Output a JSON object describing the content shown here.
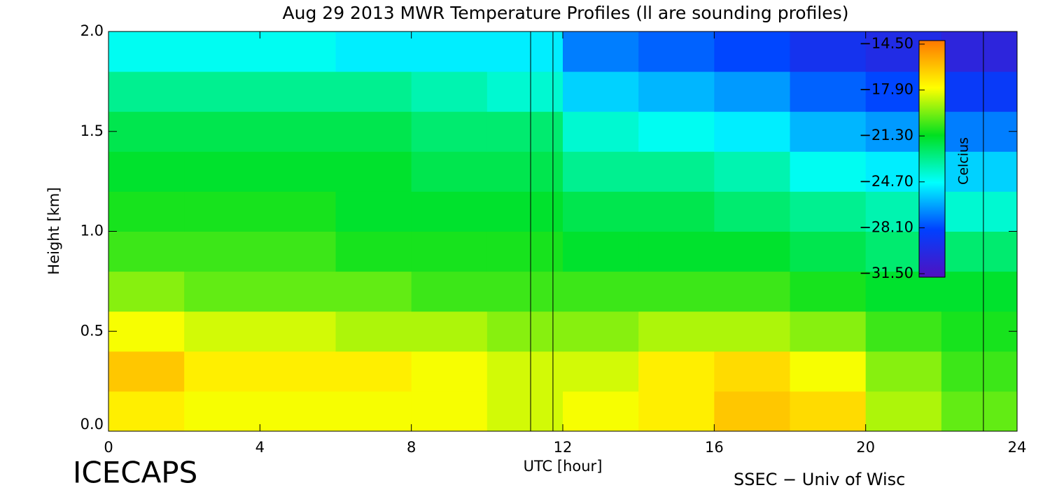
{
  "chart_data": {
    "type": "heatmap",
    "title": "Aug 29 2013 MWR Temperature Profiles (ll are sounding profiles)",
    "xlabel": "UTC [hour]",
    "ylabel": "Height [km]",
    "colorbar_label": "Celcius",
    "footer_left": "ICECAPS",
    "footer_right": "SSEC − Univ of Wisc",
    "xlim": [
      0,
      24
    ],
    "ylim": [
      0,
      2
    ],
    "xticks": [
      0,
      4,
      8,
      12,
      16,
      20,
      24
    ],
    "yticks": [
      {
        "value": 0,
        "label": "0.0"
      },
      {
        "value": 0.5,
        "label": "0.5"
      },
      {
        "value": 1,
        "label": "1.0"
      },
      {
        "value": 1.5,
        "label": "1.5"
      },
      {
        "value": 2,
        "label": "2.0"
      }
    ],
    "x_edges": [
      0,
      2,
      4,
      6,
      8,
      10,
      12,
      14,
      16,
      18,
      20,
      22,
      24
    ],
    "y_edges": [
      0,
      0.2,
      0.4,
      0.6,
      0.8,
      1,
      1.2,
      1.4,
      1.6,
      1.8,
      2
    ],
    "z": [
      [
        -17.5,
        -18,
        -18,
        -18,
        -18,
        -18.5,
        -18,
        -17.5,
        -16.5,
        -17,
        -19,
        -20
      ],
      [
        -16.5,
        -17.5,
        -17.5,
        -17.5,
        -18,
        -18.5,
        -18.5,
        -17.5,
        -17,
        -18,
        -19.5,
        -20.5
      ],
      [
        -18,
        -18.5,
        -18.5,
        -19,
        -19,
        -19.5,
        -19.5,
        -19,
        -19,
        -19.5,
        -20.5,
        -21
      ],
      [
        -19.5,
        -20,
        -20,
        -20,
        -20.5,
        -20.5,
        -20.5,
        -20.5,
        -20.5,
        -21,
        -21.5,
        -21.5
      ],
      [
        -20.5,
        -20.5,
        -20.5,
        -21,
        -21,
        -21,
        -21.5,
        -21.5,
        -21.5,
        -22,
        -22.5,
        -22.5
      ],
      [
        -21,
        -21,
        -21,
        -21.5,
        -21.5,
        -21.5,
        -22,
        -22,
        -22.5,
        -23,
        -23.5,
        -24
      ],
      [
        -21.5,
        -21.5,
        -21.5,
        -21.5,
        -22,
        -22,
        -23,
        -23,
        -23.5,
        -24.5,
        -25,
        -25.5
      ],
      [
        -22,
        -22,
        -22,
        -22,
        -22.5,
        -22.5,
        -24,
        -24.5,
        -25,
        -26,
        -26.5,
        -27
      ],
      [
        -23,
        -23,
        -23,
        -23,
        -23.5,
        -24,
        -25.5,
        -26,
        -26.5,
        -27.5,
        -28,
        -28.5
      ],
      [
        -24.5,
        -24.5,
        -24.5,
        -25,
        -25,
        -25,
        -27,
        -27.5,
        -28,
        -29,
        -29.5,
        -30
      ]
    ],
    "zlim": [
      -31.5,
      -14.5
    ],
    "colormap": [
      "#5010c0",
      "#0040ff",
      "#00ffff",
      "#00e020",
      "#ffff00",
      "#ff7800"
    ],
    "zticks": [
      {
        "value": -14.5,
        "label": "−14.50"
      },
      {
        "value": -17.9,
        "label": "−17.90"
      },
      {
        "value": -21.3,
        "label": "−21.30"
      },
      {
        "value": -24.7,
        "label": "−24.70"
      },
      {
        "value": -28.1,
        "label": "−28.10"
      },
      {
        "value": -31.5,
        "label": "−31.50"
      }
    ],
    "soundings": [
      11.15,
      11.74,
      23.11
    ]
  }
}
